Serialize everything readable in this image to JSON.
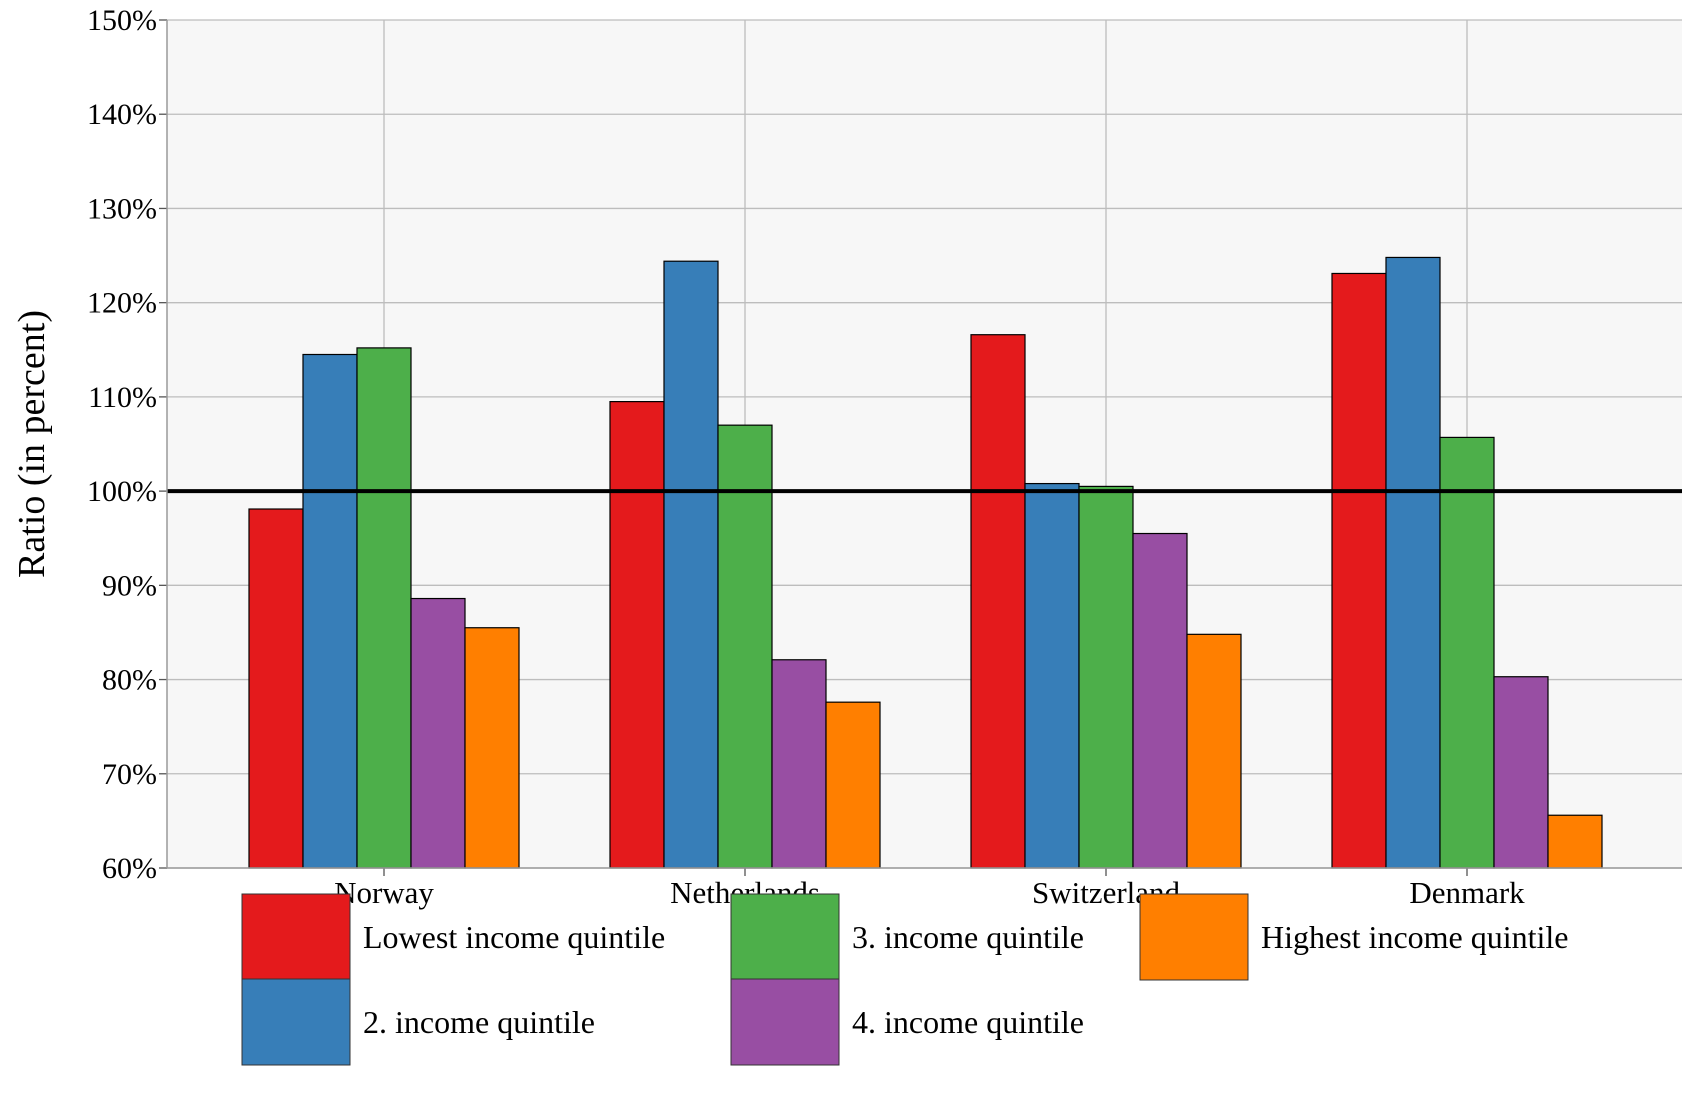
{
  "chart_data": {
    "type": "bar",
    "title": "",
    "xlabel": "",
    "ylabel": "Ratio (in percent)",
    "ylim": [
      60,
      150
    ],
    "y_ticks": [
      "60%",
      "70%",
      "80%",
      "90%",
      "100%",
      "110%",
      "120%",
      "130%",
      "140%",
      "150%"
    ],
    "reference_line": 100,
    "grid": true,
    "legend_position": "bottom",
    "categories": [
      "Norway",
      "Netherlands",
      "Switzerland",
      "Denmark"
    ],
    "series": [
      {
        "name": "Lowest income quintile",
        "color": "#e41a1c",
        "values": [
          98.1,
          109.5,
          116.6,
          123.1
        ]
      },
      {
        "name": "2. income quintile",
        "color": "#377eb8",
        "values": [
          114.5,
          124.4,
          100.8,
          124.8
        ]
      },
      {
        "name": "3. income quintile",
        "color": "#4daf4a",
        "values": [
          115.2,
          107.0,
          100.5,
          105.7
        ]
      },
      {
        "name": "4. income quintile",
        "color": "#984ea3",
        "values": [
          88.6,
          82.1,
          95.5,
          80.3
        ]
      },
      {
        "name": "Highest income quintile",
        "color": "#ff7f00",
        "values": [
          85.5,
          77.6,
          84.8,
          65.6
        ]
      }
    ]
  }
}
